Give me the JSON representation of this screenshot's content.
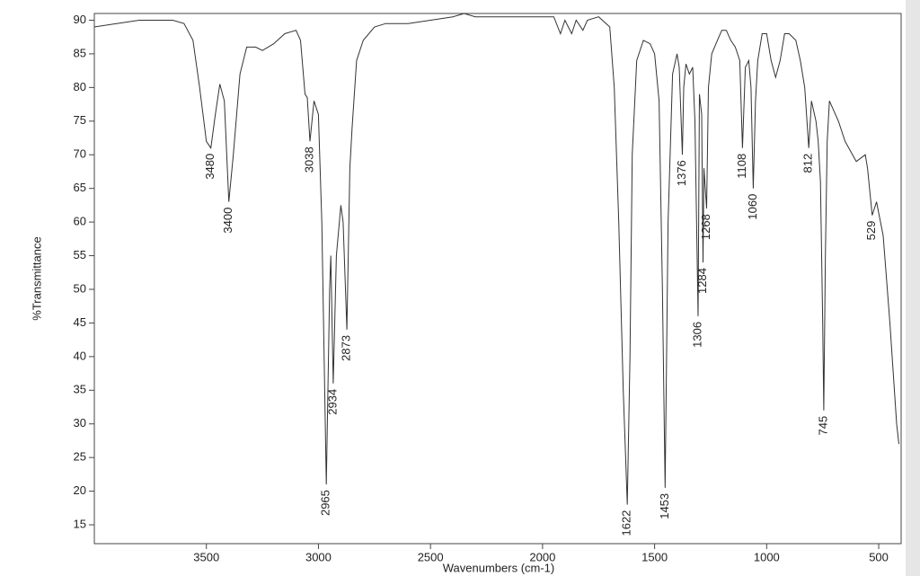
{
  "chart_data": {
    "type": "line",
    "x_label": "Wavenumbers (cm-1)",
    "y_label": "%Transmittance",
    "xlim": [
      4000,
      400
    ],
    "ylim": [
      12.2,
      91
    ],
    "xticks": [
      3500,
      3000,
      2500,
      2000,
      1500,
      1000,
      500
    ],
    "yticks": [
      15,
      20,
      25,
      30,
      35,
      40,
      45,
      50,
      55,
      60,
      65,
      70,
      75,
      80,
      85,
      90
    ],
    "color": "#333333",
    "x": [
      4000,
      3900,
      3800,
      3700,
      3650,
      3600,
      3560,
      3530,
      3500,
      3480,
      3460,
      3440,
      3420,
      3400,
      3380,
      3350,
      3320,
      3280,
      3250,
      3200,
      3150,
      3100,
      3080,
      3060,
      3050,
      3038,
      3020,
      3000,
      2985,
      2965,
      2950,
      2945,
      2934,
      2920,
      2900,
      2890,
      2873,
      2860,
      2850,
      2830,
      2800,
      2750,
      2700,
      2600,
      2500,
      2400,
      2350,
      2300,
      2200,
      2100,
      2000,
      1950,
      1920,
      1900,
      1870,
      1850,
      1820,
      1800,
      1750,
      1700,
      1680,
      1660,
      1640,
      1622,
      1610,
      1600,
      1580,
      1550,
      1520,
      1500,
      1480,
      1465,
      1453,
      1440,
      1420,
      1400,
      1390,
      1376,
      1370,
      1360,
      1345,
      1330,
      1320,
      1306,
      1300,
      1290,
      1284,
      1280,
      1268,
      1260,
      1245,
      1220,
      1200,
      1180,
      1160,
      1140,
      1120,
      1108,
      1095,
      1080,
      1070,
      1060,
      1050,
      1040,
      1020,
      1000,
      980,
      960,
      940,
      920,
      900,
      870,
      850,
      830,
      812,
      800,
      780,
      770,
      760,
      750,
      745,
      738,
      730,
      720,
      700,
      680,
      650,
      600,
      560,
      550,
      529,
      510,
      480,
      450,
      420,
      410
    ],
    "values": [
      89,
      89.5,
      90,
      90,
      90,
      89.5,
      87,
      80,
      72,
      71,
      76,
      80.5,
      78,
      63,
      70,
      82,
      86,
      86,
      85.5,
      86.5,
      88,
      88.5,
      87,
      79,
      78.5,
      72,
      78,
      76,
      60,
      21,
      50,
      55,
      36,
      55,
      62.5,
      60,
      44,
      68,
      74,
      84,
      87,
      89,
      89.5,
      89.5,
      90,
      90.5,
      91,
      90.5,
      90.5,
      90.5,
      90.5,
      90.5,
      88,
      90,
      88,
      90,
      88.5,
      90,
      90.5,
      89,
      80,
      60,
      35,
      18,
      40,
      70,
      84,
      87,
      86.5,
      85,
      78,
      50,
      20.5,
      60,
      82,
      85,
      83,
      70,
      80,
      83.5,
      82,
      83,
      75,
      46,
      79,
      76,
      54,
      68,
      62,
      80,
      85,
      87,
      88.5,
      88.5,
      87,
      86,
      84,
      71,
      83,
      84,
      80,
      65,
      78,
      84,
      88,
      88,
      84,
      81.5,
      84,
      88,
      88,
      87,
      84,
      80,
      71,
      78,
      75,
      72,
      66,
      45,
      32,
      55,
      72,
      78,
      76.5,
      75,
      72,
      69,
      70,
      68,
      61,
      63,
      58,
      45,
      30,
      27
    ],
    "peaks": [
      3480,
      3400,
      3038,
      2965,
      2934,
      2873,
      1622,
      1453,
      1376,
      1306,
      1284,
      1268,
      1108,
      1060,
      812,
      745,
      529
    ]
  }
}
